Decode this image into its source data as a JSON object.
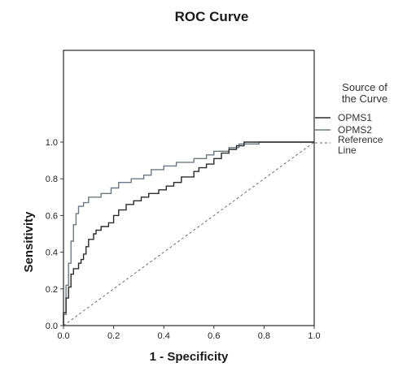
{
  "chart_data": {
    "type": "line",
    "title": "ROC Curve",
    "xlabel": "1 - Specificity",
    "ylabel": "Sensitivity",
    "xlim": [
      0,
      1
    ],
    "ylim": [
      0,
      1
    ],
    "xticks": [
      "0.0",
      "0.2",
      "0.4",
      "0.6",
      "0.8",
      "1.0"
    ],
    "yticks": [
      "0.0",
      "0.2",
      "0.4",
      "0.6",
      "0.8",
      "1.0"
    ],
    "grid": false,
    "legend_title": "Source of the Curve",
    "legend_placement": "right",
    "series": [
      {
        "name": "OPMS1",
        "color": "#2b2b2b",
        "style": "solid",
        "points": [
          [
            0,
            0
          ],
          [
            0,
            0.07
          ],
          [
            0.01,
            0.07
          ],
          [
            0.01,
            0.15
          ],
          [
            0.02,
            0.15
          ],
          [
            0.02,
            0.21
          ],
          [
            0.03,
            0.21
          ],
          [
            0.03,
            0.28
          ],
          [
            0.04,
            0.28
          ],
          [
            0.04,
            0.31
          ],
          [
            0.06,
            0.31
          ],
          [
            0.06,
            0.34
          ],
          [
            0.07,
            0.34
          ],
          [
            0.07,
            0.36
          ],
          [
            0.08,
            0.36
          ],
          [
            0.08,
            0.39
          ],
          [
            0.09,
            0.39
          ],
          [
            0.09,
            0.43
          ],
          [
            0.1,
            0.43
          ],
          [
            0.1,
            0.47
          ],
          [
            0.12,
            0.47
          ],
          [
            0.12,
            0.5
          ],
          [
            0.13,
            0.5
          ],
          [
            0.13,
            0.52
          ],
          [
            0.15,
            0.52
          ],
          [
            0.15,
            0.54
          ],
          [
            0.18,
            0.54
          ],
          [
            0.18,
            0.56
          ],
          [
            0.2,
            0.56
          ],
          [
            0.2,
            0.6
          ],
          [
            0.22,
            0.6
          ],
          [
            0.22,
            0.63
          ],
          [
            0.25,
            0.63
          ],
          [
            0.25,
            0.66
          ],
          [
            0.28,
            0.66
          ],
          [
            0.28,
            0.68
          ],
          [
            0.31,
            0.68
          ],
          [
            0.31,
            0.7
          ],
          [
            0.34,
            0.7
          ],
          [
            0.34,
            0.72
          ],
          [
            0.38,
            0.72
          ],
          [
            0.38,
            0.74
          ],
          [
            0.41,
            0.74
          ],
          [
            0.41,
            0.76
          ],
          [
            0.44,
            0.76
          ],
          [
            0.44,
            0.78
          ],
          [
            0.47,
            0.78
          ],
          [
            0.47,
            0.81
          ],
          [
            0.52,
            0.81
          ],
          [
            0.52,
            0.84
          ],
          [
            0.54,
            0.84
          ],
          [
            0.54,
            0.86
          ],
          [
            0.57,
            0.86
          ],
          [
            0.57,
            0.88
          ],
          [
            0.6,
            0.88
          ],
          [
            0.6,
            0.91
          ],
          [
            0.63,
            0.91
          ],
          [
            0.63,
            0.94
          ],
          [
            0.66,
            0.94
          ],
          [
            0.66,
            0.96
          ],
          [
            0.69,
            0.96
          ],
          [
            0.69,
            0.98
          ],
          [
            0.72,
            0.98
          ],
          [
            0.72,
            1.0
          ],
          [
            1.0,
            1.0
          ]
        ]
      },
      {
        "name": "OPMS2",
        "color": "#6f7880",
        "style": "solid",
        "points": [
          [
            0,
            0
          ],
          [
            0,
            0.06
          ],
          [
            0.01,
            0.06
          ],
          [
            0.01,
            0.22
          ],
          [
            0.02,
            0.22
          ],
          [
            0.02,
            0.34
          ],
          [
            0.03,
            0.34
          ],
          [
            0.03,
            0.46
          ],
          [
            0.04,
            0.46
          ],
          [
            0.04,
            0.55
          ],
          [
            0.05,
            0.55
          ],
          [
            0.05,
            0.61
          ],
          [
            0.06,
            0.61
          ],
          [
            0.06,
            0.65
          ],
          [
            0.08,
            0.65
          ],
          [
            0.08,
            0.67
          ],
          [
            0.1,
            0.67
          ],
          [
            0.1,
            0.7
          ],
          [
            0.15,
            0.7
          ],
          [
            0.15,
            0.72
          ],
          [
            0.19,
            0.72
          ],
          [
            0.19,
            0.75
          ],
          [
            0.22,
            0.75
          ],
          [
            0.22,
            0.78
          ],
          [
            0.27,
            0.78
          ],
          [
            0.27,
            0.8
          ],
          [
            0.32,
            0.8
          ],
          [
            0.32,
            0.82
          ],
          [
            0.35,
            0.82
          ],
          [
            0.35,
            0.85
          ],
          [
            0.4,
            0.85
          ],
          [
            0.4,
            0.87
          ],
          [
            0.45,
            0.87
          ],
          [
            0.45,
            0.89
          ],
          [
            0.52,
            0.89
          ],
          [
            0.52,
            0.91
          ],
          [
            0.57,
            0.91
          ],
          [
            0.57,
            0.93
          ],
          [
            0.6,
            0.93
          ],
          [
            0.6,
            0.95
          ],
          [
            0.66,
            0.95
          ],
          [
            0.66,
            0.97
          ],
          [
            0.7,
            0.97
          ],
          [
            0.7,
            0.99
          ],
          [
            0.78,
            0.99
          ],
          [
            0.78,
            1.0
          ],
          [
            1.0,
            1.0
          ]
        ]
      },
      {
        "name": "Reference Line",
        "legend_lines": [
          "Reference",
          "Line"
        ],
        "color": "#555555",
        "style": "dashed",
        "points": [
          [
            0,
            0
          ],
          [
            1,
            1
          ]
        ]
      }
    ]
  }
}
